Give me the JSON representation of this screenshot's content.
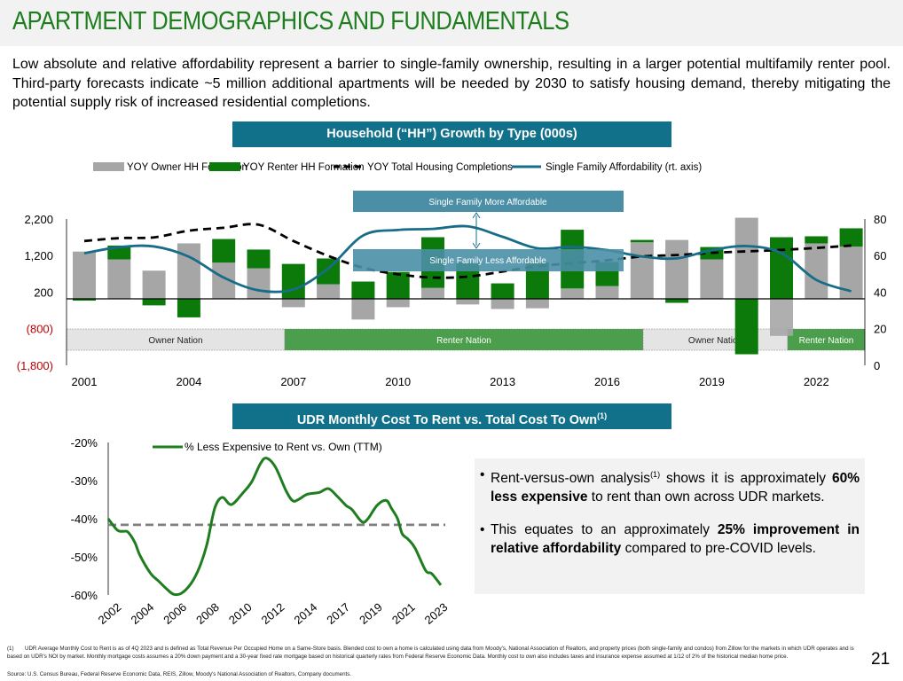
{
  "header": {
    "title": "APARTMENT DEMOGRAPHICS AND FUNDAMENTALS",
    "intro": "Low absolute and relative affordability represent a barrier to single-family ownership, resulting in a larger potential multifamily renter pool. Third-party forecasts indicate ~5 million additional apartments will be needed by 2030 to satisfy housing demand, thereby mitigating the potential supply risk of increased residential completions."
  },
  "colors": {
    "owner": "#a6a6a6",
    "renter": "#0b7a0b",
    "completions": "#000000",
    "affordability": "#176d87",
    "banner": "#11708a",
    "title": "#1e7d1e",
    "rent_vs_own": "#1e7d1e",
    "average": "#808080"
  },
  "chart_data": [
    {
      "type": "bar",
      "title": "Household (“HH”) Growth by Type (000s)",
      "legend": [
        "YOY Owner HH Formation",
        "YOY Renter HH Formation",
        "YOY Total Housing Completions",
        "Single Family Affordability (rt. axis)"
      ],
      "legend_placement": "top",
      "categories": [
        2001,
        2002,
        2003,
        2004,
        2005,
        2006,
        2007,
        2008,
        2009,
        2010,
        2011,
        2012,
        2013,
        2014,
        2015,
        2016,
        2017,
        2018,
        2019,
        2020,
        2021,
        2022,
        2023
      ],
      "xtick_labels": [
        "2001",
        "2004",
        "2007",
        "2010",
        "2013",
        "2016",
        "2019",
        "2022"
      ],
      "ytick_labels_left": [
        "2,200",
        "1,200",
        "200",
        "(800)",
        "(1,800)"
      ],
      "ytick_labels_right": [
        "80",
        "60",
        "40",
        "20",
        "0"
      ],
      "ylim_left": [
        -1800,
        2200
      ],
      "ylim_right": [
        0,
        80
      ],
      "series": [
        {
          "name": "YOY Owner HH Formation",
          "kind": "stacked-bar",
          "values": [
            1300,
            1085,
            775,
            1525,
            995,
            840,
            -230,
            400,
            -570,
            -230,
            300,
            -155,
            -280,
            -260,
            285,
            350,
            1555,
            1620,
            1085,
            2230,
            -1020,
            1525,
            1435
          ]
        },
        {
          "name": "YOY Renter HH Formation",
          "kind": "stacked-bar",
          "values": [
            -50,
            380,
            -180,
            -510,
            650,
            515,
            960,
            710,
            475,
            740,
            1395,
            1000,
            425,
            1000,
            1615,
            660,
            65,
            -110,
            340,
            -1525,
            1695,
            195,
            505
          ]
        },
        {
          "name": "YOY Total Housing Completions",
          "kind": "dashed-line",
          "values": [
            1590,
            1670,
            1690,
            1875,
            1955,
            2040,
            1590,
            1180,
            855,
            675,
            585,
            610,
            750,
            895,
            980,
            1060,
            1165,
            1205,
            1265,
            1305,
            1345,
            1400,
            1465
          ]
        },
        {
          "name": "Single Family Affordability (rt. axis)",
          "kind": "line",
          "axis": "right",
          "values": [
            61.3,
            64.6,
            65,
            59.4,
            48,
            41,
            41.5,
            53,
            71,
            74,
            74.6,
            76,
            70.3,
            64,
            64.8,
            63,
            59.5,
            58.5,
            63,
            65.2,
            61.3,
            46.7,
            40.5
          ]
        }
      ],
      "annotations": [
        "Single Family More Affordable",
        "Single Family Less Affordable"
      ],
      "bands": [
        {
          "label": "Owner Nation"
        },
        {
          "label": "Renter Nation"
        },
        {
          "label": "Owner Nation"
        },
        {
          "label": "Renter Nation"
        }
      ]
    },
    {
      "type": "line",
      "title": "UDR Monthly Cost To Rent vs. Total Cost To Own",
      "title_sup": "(1)",
      "legend": [
        "% Less Expensive to Rent vs. Own (TTM)"
      ],
      "legend_placement": "top",
      "ylim": [
        -60,
        -20
      ],
      "ytick_labels": [
        "-20%",
        "-30%",
        "-40%",
        "-50%",
        "-60%"
      ],
      "xtick_labels": [
        "2002",
        "2004",
        "2006",
        "2008",
        "2010",
        "2012",
        "2014",
        "2017",
        "2019",
        "2021",
        "2023"
      ],
      "average_line": -41.6,
      "series": [
        {
          "name": "% Less Expensive to Rent vs. Own (TTM)",
          "points": [
            [
              2002.0,
              -40
            ],
            [
              2002.6,
              -43
            ],
            [
              2003.0,
              -43.3
            ],
            [
              2003.3,
              -43.5
            ],
            [
              2003.75,
              -46.2
            ],
            [
              2004.1,
              -49.7
            ],
            [
              2004.8,
              -54.4
            ],
            [
              2005.3,
              -56.3
            ],
            [
              2005.9,
              -58.6
            ],
            [
              2006.3,
              -59.8
            ],
            [
              2006.8,
              -59.6
            ],
            [
              2007.45,
              -57
            ],
            [
              2008.0,
              -52.8
            ],
            [
              2008.5,
              -46.7
            ],
            [
              2009.0,
              -37.4
            ],
            [
              2009.5,
              -34.4
            ],
            [
              2010.1,
              -36.3
            ],
            [
              2010.85,
              -33.3
            ],
            [
              2011.45,
              -30.3
            ],
            [
              2012.0,
              -25.7
            ],
            [
              2012.4,
              -24.1
            ],
            [
              2013.0,
              -26.4
            ],
            [
              2013.7,
              -32.6
            ],
            [
              2014.15,
              -35.3
            ],
            [
              2014.55,
              -34.9
            ],
            [
              2015.1,
              -33.6
            ],
            [
              2015.9,
              -33.1
            ],
            [
              2016.5,
              -32.1
            ],
            [
              2017.1,
              -34.2
            ],
            [
              2017.65,
              -36.5
            ],
            [
              2018.05,
              -37.6
            ],
            [
              2018.7,
              -40.8
            ],
            [
              2019.1,
              -40
            ],
            [
              2019.7,
              -36.5
            ],
            [
              2020.3,
              -35.2
            ],
            [
              2020.65,
              -37.3
            ],
            [
              2021.05,
              -40
            ],
            [
              2021.35,
              -43.9
            ],
            [
              2021.75,
              -45.4
            ],
            [
              2022.2,
              -47.7
            ],
            [
              2022.9,
              -53.6
            ],
            [
              2023.3,
              -54.4
            ],
            [
              2023.9,
              -57.4
            ]
          ]
        }
      ]
    }
  ],
  "callout": {
    "b1_pre": "Rent-versus-own analysis",
    "b1_sup": "(1)",
    "b1_mid": " shows it is approximately ",
    "b1_bold": "60% less expensive",
    "b1_post": " to rent than own across UDR markets.",
    "b2_pre": "This equates to an approximately ",
    "b2_bold": "25% improvement in relative affordability",
    "b2_post": " compared to pre-COVID levels."
  },
  "footer": {
    "note_num": "(1)",
    "note": "UDR Average Monthly Cost to Rent is as of 4Q 2023 and is defined as Total Revenue Per Occupied Home on a Same-Store basis. Blended cost to own a home is calculated using data from Moody's, National Association of Realtors, and property prices (both single-family and condos) from Zillow for the markets in which UDR operates and is based on UDR's NOI by market. Monthly mortgage costs assumes a 20% down payment and a 30-year fixed rate mortgage based on historical quarterly rates from Federal Reserve Economic Data. Monthly cost to own also includes taxes and insurance expense assumed at 1/12 of 2% of the historical median home price.",
    "source": "Source: U.S. Census Bureau, Federal Reserve Economic Data, REIS, Zillow, Moody's National Association of Realtors, Company documents.",
    "page": "21"
  }
}
